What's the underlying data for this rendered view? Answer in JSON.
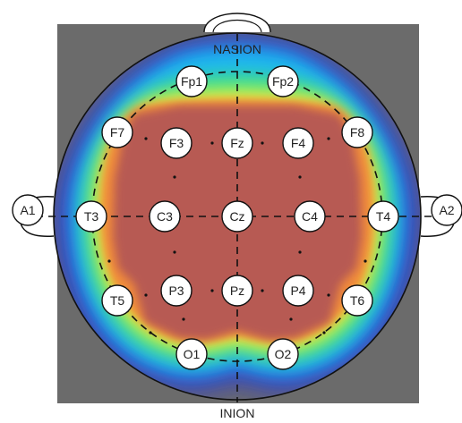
{
  "landmarks": {
    "nasion": "NASION",
    "inion": "INION"
  },
  "electrodes": [
    {
      "id": "Fp1",
      "label": "Fp1"
    },
    {
      "id": "Fp2",
      "label": "Fp2"
    },
    {
      "id": "F7",
      "label": "F7"
    },
    {
      "id": "F3",
      "label": "F3"
    },
    {
      "id": "Fz",
      "label": "Fz"
    },
    {
      "id": "F4",
      "label": "F4"
    },
    {
      "id": "F8",
      "label": "F8"
    },
    {
      "id": "A1",
      "label": "A1"
    },
    {
      "id": "T3",
      "label": "T3"
    },
    {
      "id": "C3",
      "label": "C3"
    },
    {
      "id": "Cz",
      "label": "Cz"
    },
    {
      "id": "C4",
      "label": "C4"
    },
    {
      "id": "T4",
      "label": "T4"
    },
    {
      "id": "A2",
      "label": "A2"
    },
    {
      "id": "T5",
      "label": "T5"
    },
    {
      "id": "P3",
      "label": "P3"
    },
    {
      "id": "Pz",
      "label": "Pz"
    },
    {
      "id": "P4",
      "label": "P4"
    },
    {
      "id": "T6",
      "label": "T6"
    },
    {
      "id": "O1",
      "label": "O1"
    },
    {
      "id": "O2",
      "label": "O2"
    }
  ],
  "colors": {
    "background": "#6b6b6b",
    "core": "#b75a52",
    "outline": "#111111",
    "electrode_fill": "#ffffff"
  }
}
